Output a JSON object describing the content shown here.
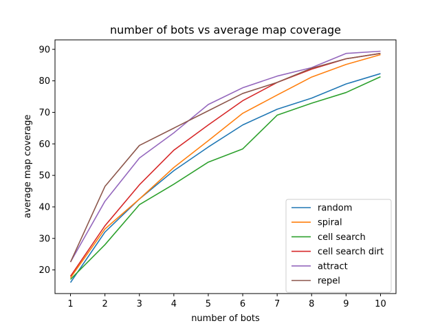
{
  "chart_data": {
    "type": "line",
    "title": "number of bots vs average map coverage",
    "xlabel": "number of bots",
    "ylabel": "average map coverage",
    "x": [
      1,
      2,
      3,
      4,
      5,
      6,
      7,
      8,
      9,
      10
    ],
    "xlim": [
      0.55,
      10.45
    ],
    "ylim": [
      12.5,
      93
    ],
    "xticks": [
      1,
      2,
      3,
      4,
      5,
      6,
      7,
      8,
      9,
      10
    ],
    "yticks": [
      20,
      30,
      40,
      50,
      60,
      70,
      80,
      90
    ],
    "grid": false,
    "legend_position": "lower-right",
    "series": [
      {
        "name": "random",
        "color": "#1f77b4",
        "values": [
          16.0,
          32.0,
          42.5,
          51.5,
          59.0,
          66.0,
          71.0,
          74.5,
          79.0,
          82.3
        ]
      },
      {
        "name": "spiral",
        "color": "#ff7f0e",
        "values": [
          17.5,
          33.0,
          42.5,
          52.5,
          61.0,
          69.7,
          75.5,
          81.2,
          85.2,
          88.3
        ]
      },
      {
        "name": "cell search",
        "color": "#2ca02c",
        "values": [
          17.0,
          28.0,
          40.7,
          47.2,
          54.2,
          58.4,
          69.1,
          72.9,
          76.3,
          81.3
        ]
      },
      {
        "name": "cell search dirt",
        "color": "#d62728",
        "values": [
          18.0,
          34.0,
          47.0,
          58.0,
          66.0,
          73.7,
          79.5,
          83.7,
          87.0,
          88.7
        ]
      },
      {
        "name": "attract",
        "color": "#9467bd",
        "values": [
          22.5,
          41.8,
          55.5,
          63.5,
          72.5,
          77.8,
          81.5,
          84.2,
          88.7,
          89.4
        ]
      },
      {
        "name": "repel",
        "color": "#8c564b",
        "values": [
          22.5,
          46.5,
          59.5,
          65.0,
          70.5,
          76.0,
          79.5,
          84.0,
          87.0,
          88.7
        ]
      }
    ]
  }
}
